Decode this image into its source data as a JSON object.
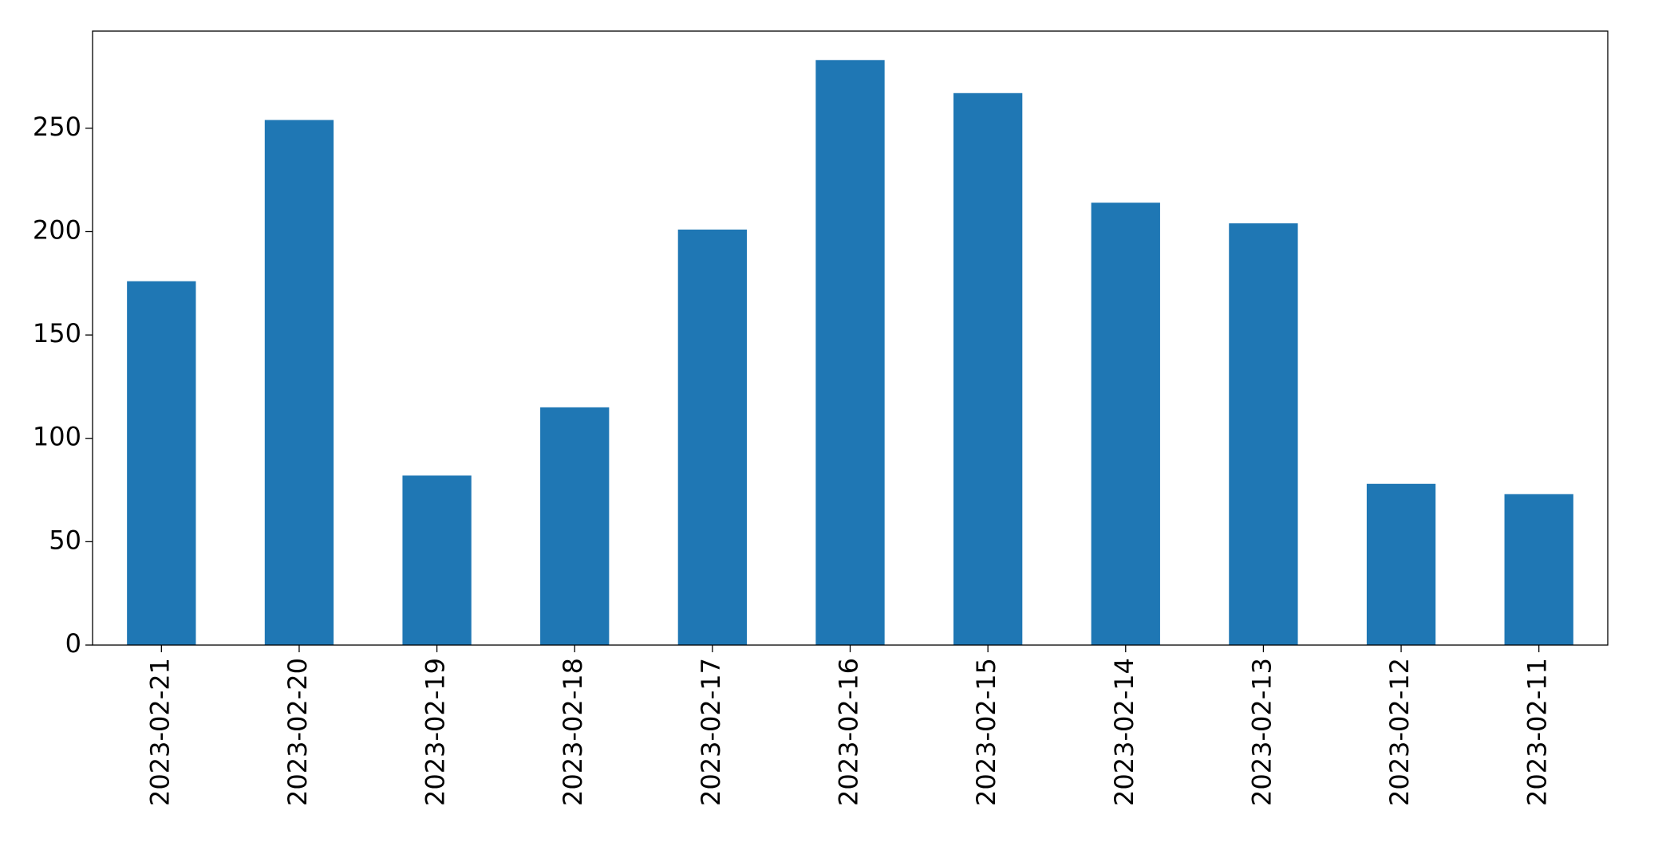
{
  "chart_data": {
    "type": "bar",
    "categories": [
      "2023-02-21",
      "2023-02-20",
      "2023-02-19",
      "2023-02-18",
      "2023-02-17",
      "2023-02-16",
      "2023-02-15",
      "2023-02-14",
      "2023-02-13",
      "2023-02-12",
      "2023-02-11"
    ],
    "values": [
      176,
      254,
      82,
      115,
      201,
      283,
      267,
      214,
      204,
      78,
      73
    ],
    "color": "#1f77b4",
    "ylim": [
      0,
      297
    ],
    "yticks": [
      0,
      50,
      100,
      150,
      200,
      250
    ],
    "grid": false
  }
}
